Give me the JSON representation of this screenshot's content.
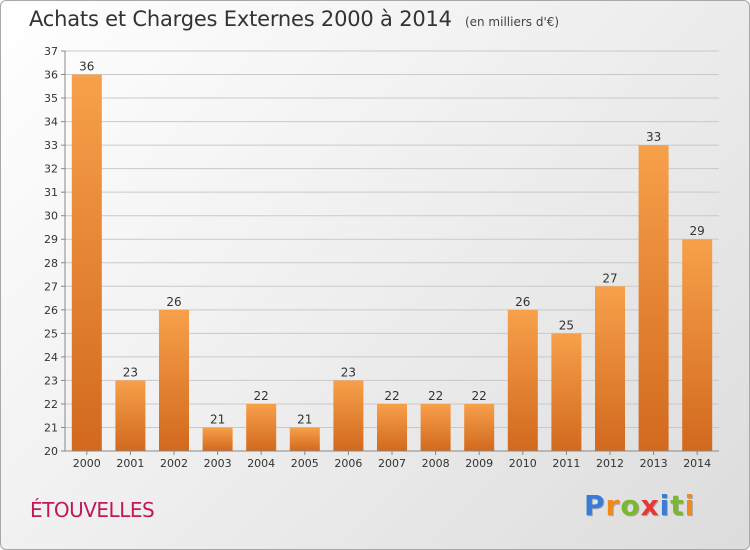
{
  "title": "Achats et Charges Externes 2000 à 2014",
  "unit_note": "(en milliers d'€)",
  "commune": "ÉTOUVELLES",
  "logo": {
    "letters": [
      "P",
      "r",
      "o",
      "x",
      "i",
      "t",
      "i"
    ],
    "colors": [
      "#3a7bd5",
      "#f08a1c",
      "#7cb82f",
      "#e53935",
      "#3a7bd5",
      "#7cb82f",
      "#f08a1c"
    ]
  },
  "colors": {
    "bar_top": "#f7a04a",
    "bar_bottom": "#d2691e",
    "grid": "#c9c9c9",
    "text": "#333333"
  },
  "chart_data": {
    "type": "bar",
    "categories": [
      "2000",
      "2001",
      "2002",
      "2003",
      "2004",
      "2005",
      "2006",
      "2007",
      "2008",
      "2009",
      "2010",
      "2011",
      "2012",
      "2013",
      "2014"
    ],
    "values": [
      36,
      23,
      26,
      21,
      22,
      21,
      23,
      22,
      22,
      22,
      26,
      25,
      27,
      33,
      29
    ],
    "ylim": [
      20,
      37
    ],
    "yticks": [
      20,
      21,
      22,
      23,
      24,
      25,
      26,
      27,
      28,
      29,
      30,
      31,
      32,
      33,
      34,
      35,
      36,
      37
    ],
    "grid": true,
    "legend": "none"
  }
}
